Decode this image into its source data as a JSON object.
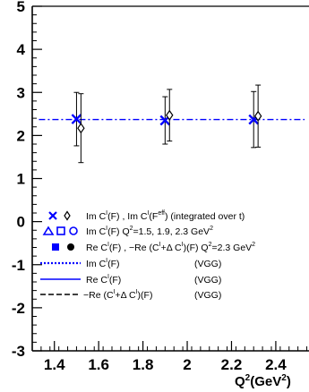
{
  "chart_data": {
    "type": "scatter",
    "xlabel": "Q²(GeV²)",
    "xlabel_main": "Q",
    "xlabel_sup": "2",
    "xlabel_unit": "(GeV",
    "xlabel_unit_sup": "2",
    "xlabel_close": ")",
    "xlim": [
      1.3,
      2.55
    ],
    "ylim": [
      -3,
      5
    ],
    "grid": false,
    "legend_placement": "bottom-left",
    "x_ticks": [
      "1.4",
      "1.6",
      "1.8",
      "2",
      "2.2",
      "2.4"
    ],
    "x_tick_values": [
      1.4,
      1.6,
      1.8,
      2.0,
      2.2,
      2.4
    ],
    "y_ticks": [
      "-3",
      "-2",
      "-1",
      "0",
      "1",
      "2",
      "3",
      "4",
      "5"
    ],
    "y_tick_values": [
      -3,
      -2,
      -1,
      0,
      1,
      2,
      3,
      4,
      5
    ],
    "series": [
      {
        "marker": "x",
        "color": "#0000ff",
        "x": [
          1.5,
          1.9,
          2.3
        ],
        "y": [
          2.38,
          2.35,
          2.37
        ],
        "yerr": [
          0.62,
          0.55,
          0.65
        ]
      },
      {
        "marker": "diamond-open",
        "color": "#000000",
        "x": [
          1.52,
          1.92,
          2.32
        ],
        "y": [
          2.17,
          2.47,
          2.45
        ],
        "yerr": [
          0.8,
          0.6,
          0.72
        ]
      }
    ],
    "reference_line": {
      "style": "dash-dot",
      "color": "#0000ff",
      "y": 2.37,
      "x_range": [
        1.33,
        2.53
      ]
    },
    "legend": [
      {
        "symbol": "x-diamond",
        "parts": [
          {
            "t": "Im C"
          },
          {
            "t": "I",
            "sup": true
          },
          {
            "t": "(F) , Im C"
          },
          {
            "t": "I",
            "sup": true
          },
          {
            "t": "(F"
          },
          {
            "t": "eff",
            "sup": true
          },
          {
            "t": ")  (integrated over t)"
          }
        ]
      },
      {
        "symbol": "open-triangle-square-circle",
        "parts": [
          {
            "t": "Im C"
          },
          {
            "t": "I",
            "sup": true
          },
          {
            "t": "(F)   Q"
          },
          {
            "t": "2",
            "sup": true
          },
          {
            "t": "=1.5, 1.9, 2.3 GeV"
          },
          {
            "t": "2",
            "sup": true
          }
        ]
      },
      {
        "symbol": "filled-square-circle",
        "parts": [
          {
            "t": "Re C"
          },
          {
            "t": "I",
            "sup": true
          },
          {
            "t": "(F) , −Re (C"
          },
          {
            "t": "I",
            "sup": true
          },
          {
            "t": "+Δ C"
          },
          {
            "t": "I",
            "sup": true
          },
          {
            "t": ")(F)  Q"
          },
          {
            "t": "2",
            "sup": true
          },
          {
            "t": "=2.3 GeV"
          },
          {
            "t": "2",
            "sup": true
          }
        ]
      },
      {
        "symbol": "dotted-line",
        "parts": [
          {
            "t": "Im C"
          },
          {
            "t": "I",
            "sup": true
          },
          {
            "t": "(F)"
          }
        ],
        "right": "(VGG)"
      },
      {
        "symbol": "solid-line",
        "parts": [
          {
            "t": "Re C"
          },
          {
            "t": "I",
            "sup": true
          },
          {
            "t": "(F)"
          }
        ],
        "right": "(VGG)"
      },
      {
        "symbol": "dashed-line",
        "parts": [
          {
            "t": "−Re (C"
          },
          {
            "t": "I",
            "sup": true
          },
          {
            "t": "+Δ C"
          },
          {
            "t": "I",
            "sup": true
          },
          {
            "t": ")(F)"
          }
        ],
        "right": "(VGG)"
      }
    ]
  }
}
